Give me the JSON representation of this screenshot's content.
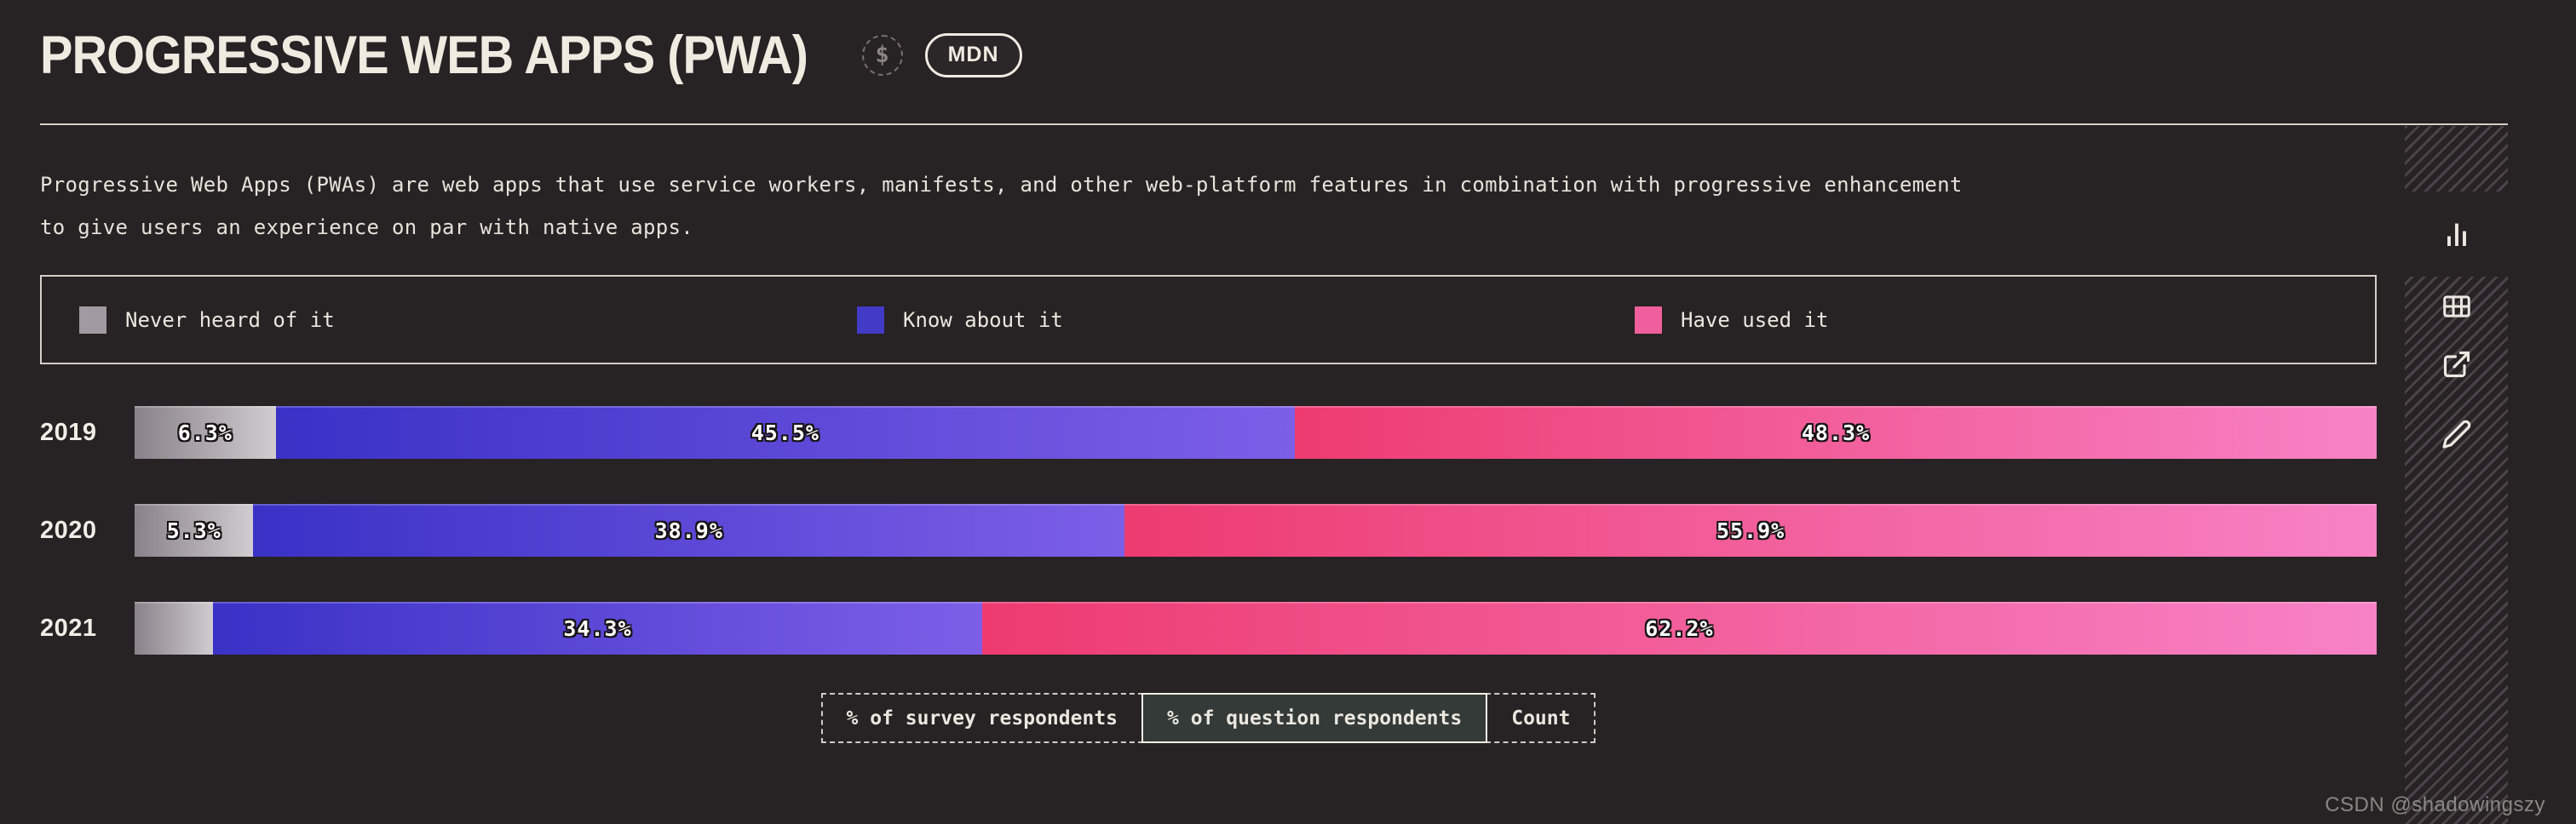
{
  "header": {
    "title": "PROGRESSIVE WEB APPS (PWA)",
    "dollar_icon": "$",
    "mdn_badge": "MDN"
  },
  "description": "Progressive Web Apps (PWAs) are web apps that use service workers, manifests, and other web-platform features in combination with progressive enhancement to give users an experience on par with native apps.",
  "legend": {
    "items": [
      {
        "id": "never_heard",
        "label": "Never heard of it",
        "color": "#a29aa2"
      },
      {
        "id": "know_about",
        "label": "Know about it",
        "color": "#413bc7"
      },
      {
        "id": "have_used",
        "label": "Have used it",
        "color": "#ef5f9d"
      }
    ]
  },
  "chart_data": {
    "type": "bar",
    "variant": "horizontal_stacked",
    "categories": [
      "2019",
      "2020",
      "2021"
    ],
    "series": [
      {
        "name": "Never heard of it",
        "values": [
          6.3,
          5.3,
          3.5
        ],
        "labels": [
          "6.3%",
          "5.3%",
          ""
        ],
        "gradient": [
          "#89828a",
          "#d0ccd0"
        ]
      },
      {
        "name": "Know about it",
        "values": [
          45.5,
          38.9,
          34.3
        ],
        "labels": [
          "45.5%",
          "38.9%",
          "34.3%"
        ],
        "gradient": [
          "#3a31c6",
          "#7c5fe7"
        ]
      },
      {
        "name": "Have used it",
        "values": [
          48.3,
          55.9,
          62.2
        ],
        "labels": [
          "48.3%",
          "55.9%",
          "62.2%"
        ],
        "gradient": [
          "#ed3b70",
          "#f782c6"
        ]
      }
    ],
    "xlim": [
      0,
      100
    ],
    "unit": "% of question respondents",
    "legend_position": "top",
    "grid": false
  },
  "controls": {
    "buttons": [
      {
        "label": "% of survey respondents",
        "selected": false
      },
      {
        "label": "% of question respondents",
        "selected": true
      },
      {
        "label": "Count",
        "selected": false
      }
    ]
  },
  "sidebar": {
    "icons": [
      {
        "id": "bar-chart-icon",
        "active": true
      },
      {
        "id": "table-icon",
        "active": false
      },
      {
        "id": "external-link-icon",
        "active": false
      },
      {
        "id": "edit-icon",
        "active": false
      }
    ]
  },
  "watermark": "CSDN @shadowingszy"
}
